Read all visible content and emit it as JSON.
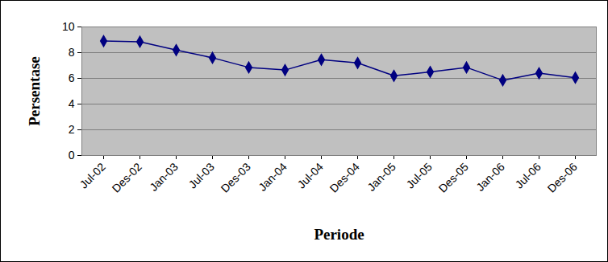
{
  "chart_data": {
    "type": "line",
    "x_label": "Periode",
    "y_label": "Persentase",
    "categories": [
      "Jul-02",
      "Des-02",
      "Jan-03",
      "Jul-03",
      "Des-03",
      "Jan-04",
      "Jul-04",
      "Des-04",
      "Jan-05",
      "Jul-05",
      "Des-05",
      "Jan-06",
      "Jul-06",
      "Des-06"
    ],
    "values": [
      8.9,
      8.85,
      8.2,
      7.6,
      6.85,
      6.65,
      7.45,
      7.2,
      6.2,
      6.5,
      6.85,
      5.85,
      6.4,
      6.05
    ],
    "color": "#000080",
    "marker": "diamond",
    "ylim": [
      0,
      10
    ],
    "yticks": [
      0,
      2,
      4,
      6,
      8,
      10
    ],
    "grid": true
  }
}
